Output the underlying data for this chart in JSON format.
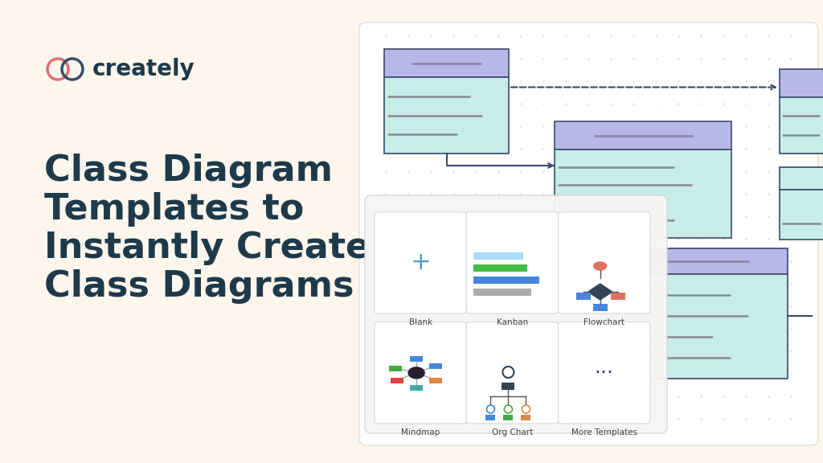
{
  "bg_color": "#fdf6ed",
  "panel_bg": "#ffffff",
  "panel_border": "#e0e0e0",
  "text_dark": "#1e3a4a",
  "title_lines": [
    "Class Diagram",
    "Templates to",
    "Instantly Create",
    "Class Diagrams"
  ],
  "logo_text": "creately",
  "logo_color": "#1e3a4a",
  "logo_icon_color1": "#e07070",
  "logo_icon_color2": "#3a4a6a",
  "class_header_color": "#b8b8e8",
  "class_body_color": "#c8ede8",
  "class_border_color": "#3a4a6a",
  "line_colors": [
    "#8888aa",
    "#aaaaaa",
    "#888888"
  ],
  "template_labels": [
    "Blank",
    "Kanban",
    "Flowchart",
    "Mindmap",
    "Org Chart",
    "More Templates"
  ],
  "template_bg": "#f8f8f8",
  "template_border": "#e0e0e0"
}
